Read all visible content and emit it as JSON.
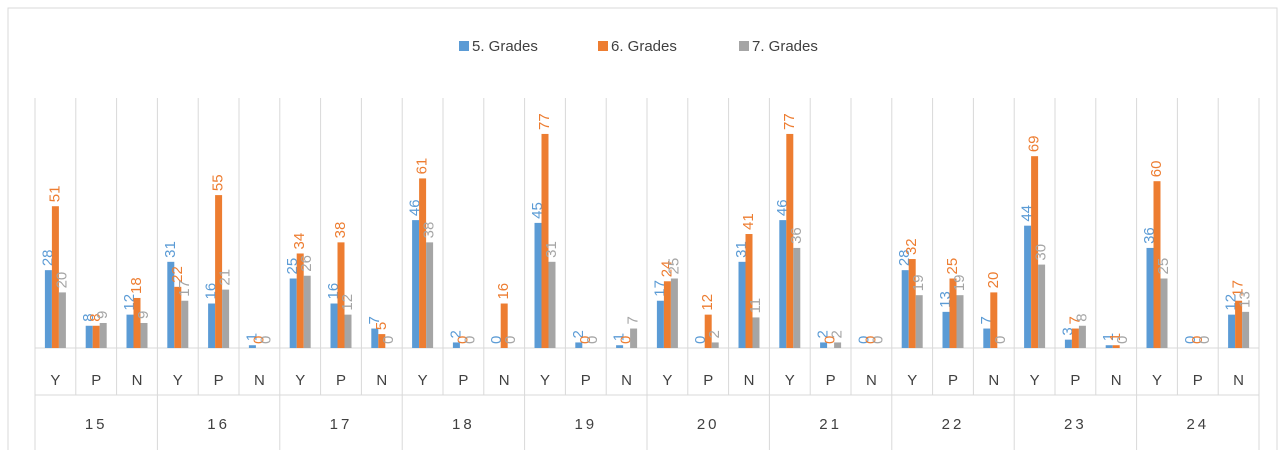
{
  "chart_data": {
    "type": "bar",
    "groups": [
      "15",
      "16",
      "17",
      "18",
      "19",
      "20",
      "21",
      "22",
      "23",
      "24"
    ],
    "categories": [
      "Y",
      "P",
      "N",
      "Y",
      "P",
      "N",
      "Y",
      "P",
      "N",
      "Y",
      "P",
      "N",
      "Y",
      "P",
      "N",
      "Y",
      "P",
      "N",
      "Y",
      "P",
      "N",
      "Y",
      "P",
      "N",
      "Y",
      "P",
      "N",
      "Y",
      "P",
      "N"
    ],
    "series": [
      {
        "name": "5. Grades",
        "color": "#5b9bd5",
        "values": [
          28,
          8,
          12,
          31,
          16,
          1,
          25,
          16,
          7,
          46,
          2,
          0,
          45,
          2,
          1,
          17,
          0,
          31,
          46,
          2,
          0,
          28,
          13,
          7,
          44,
          3,
          1,
          36,
          0,
          12
        ]
      },
      {
        "name": "6. Grades",
        "color": "#ed7d31",
        "values": [
          51,
          8,
          18,
          22,
          55,
          0,
          34,
          38,
          5,
          61,
          0,
          16,
          77,
          0,
          0,
          24,
          12,
          41,
          77,
          0,
          0,
          32,
          25,
          20,
          69,
          7,
          1,
          60,
          0,
          17
        ]
      },
      {
        "name": "7. Grades",
        "color": "#a5a5a5",
        "values": [
          20,
          9,
          9,
          17,
          21,
          0,
          26,
          12,
          0,
          38,
          0,
          0,
          31,
          0,
          7,
          25,
          2,
          11,
          36,
          2,
          0,
          19,
          19,
          0,
          30,
          8,
          0,
          25,
          0,
          13
        ]
      }
    ],
    "legend": "top"
  }
}
